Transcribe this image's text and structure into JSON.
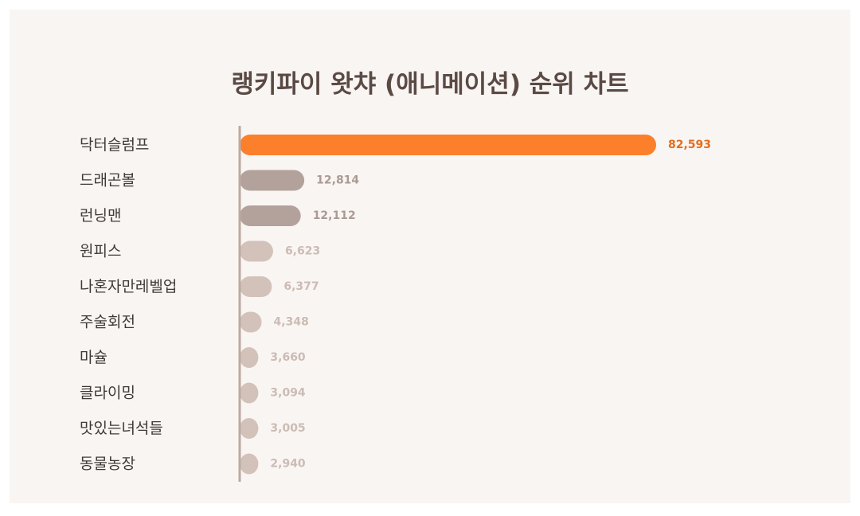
{
  "chart_data": {
    "type": "bar",
    "orientation": "horizontal",
    "title": "랭키파이 왓챠 (애니메이션) 순위 차트",
    "categories": [
      "닥터슬럼프",
      "드래곤볼",
      "런닝맨",
      "원피스",
      "나혼자만레벨업",
      "주술회전",
      "마슐",
      "클라이밍",
      "맛있는녀석들",
      "동물농장"
    ],
    "values": [
      82593,
      12814,
      12112,
      6623,
      6377,
      4348,
      3660,
      3094,
      3005,
      2940
    ],
    "value_labels": [
      "82,593",
      "12,814",
      "12,112",
      "6,623",
      "6,377",
      "4,348",
      "3,660",
      "3,094",
      "3,005",
      "2,940"
    ],
    "xlabel": "",
    "ylabel": "",
    "grid": false,
    "legend": "none",
    "colors": {
      "highlight_bar": "#fc7f2b",
      "highlight_label": "#e46d1c",
      "dark_bar": "#b3a29b",
      "dark_label": "#ab9a93",
      "light_bar": "#d2c2ba",
      "light_label": "#cbbcb4",
      "category_label": "#3f3a38",
      "axis_line": "#bcaaa2",
      "panel_background": "#f9f5f3"
    }
  }
}
